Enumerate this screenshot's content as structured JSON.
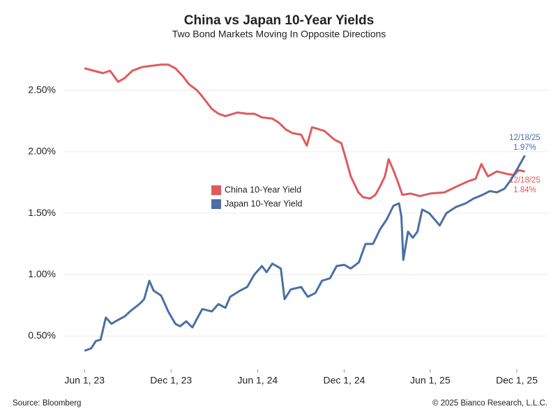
{
  "chart_data": {
    "type": "line",
    "title": "China vs Japan 10-Year Yields",
    "subtitle": "Two Bond Markets Moving In Opposite Directions",
    "source": "Source: Bloomberg",
    "credit": "© 2025 Bianco Research, L.L.C.",
    "xlim": [
      "2023-04-16",
      "2026-02-04"
    ],
    "xticks": [
      {
        "value": "2023-06-01",
        "label": "Jun 1, 23"
      },
      {
        "value": "2023-12-01",
        "label": "Dec 1, 23"
      },
      {
        "value": "2024-06-01",
        "label": "Jun 1, 24"
      },
      {
        "value": "2024-12-01",
        "label": "Dec 1, 24"
      },
      {
        "value": "2025-06-01",
        "label": "Jun 1, 25"
      },
      {
        "value": "2025-12-01",
        "label": "Dec 1, 25"
      }
    ],
    "ylim": [
      0.23,
      2.85
    ],
    "yticks": [
      {
        "value": 0.5,
        "label": "0.50%"
      },
      {
        "value": 1.0,
        "label": "1.00%"
      },
      {
        "value": 1.5,
        "label": "1.50%"
      },
      {
        "value": 2.0,
        "label": "2.00%"
      },
      {
        "value": 2.5,
        "label": "2.50%"
      }
    ],
    "grid": true,
    "legend": "center",
    "series": [
      {
        "name": "China 10-Year Yield",
        "color": "#e05a5d",
        "x": [
          "2023-06-01",
          "2023-06-20",
          "2023-07-10",
          "2023-07-25",
          "2023-08-11",
          "2023-08-25",
          "2023-09-10",
          "2023-10-01",
          "2023-10-20",
          "2023-11-10",
          "2023-11-25",
          "2023-12-10",
          "2023-12-25",
          "2024-01-08",
          "2024-01-25",
          "2024-02-05",
          "2024-02-25",
          "2024-03-10",
          "2024-03-25",
          "2024-04-19",
          "2024-05-10",
          "2024-05-25",
          "2024-06-10",
          "2024-07-02",
          "2024-07-15",
          "2024-07-31",
          "2024-08-15",
          "2024-09-01",
          "2024-09-13",
          "2024-09-24",
          "2024-10-20",
          "2024-11-10",
          "2024-11-25",
          "2024-12-04",
          "2024-12-15",
          "2024-12-31",
          "2025-01-10",
          "2025-01-25",
          "2025-02-05",
          "2025-02-15",
          "2025-02-25",
          "2025-03-05",
          "2025-03-15",
          "2025-03-25",
          "2025-04-03",
          "2025-04-20",
          "2025-05-10",
          "2025-06-01",
          "2025-07-01",
          "2025-07-28",
          "2025-08-20",
          "2025-09-05",
          "2025-09-17",
          "2025-10-01",
          "2025-10-20",
          "2025-11-10",
          "2025-11-25",
          "2025-12-05",
          "2025-12-18"
        ],
        "values": [
          2.68,
          2.66,
          2.64,
          2.66,
          2.57,
          2.6,
          2.66,
          2.69,
          2.7,
          2.71,
          2.71,
          2.68,
          2.62,
          2.55,
          2.5,
          2.45,
          2.35,
          2.31,
          2.29,
          2.32,
          2.31,
          2.31,
          2.28,
          2.27,
          2.24,
          2.18,
          2.15,
          2.14,
          2.05,
          2.2,
          2.17,
          2.1,
          2.07,
          1.95,
          1.8,
          1.67,
          1.63,
          1.62,
          1.65,
          1.72,
          1.8,
          1.94,
          1.85,
          1.75,
          1.65,
          1.66,
          1.64,
          1.66,
          1.67,
          1.72,
          1.76,
          1.78,
          1.9,
          1.8,
          1.84,
          1.82,
          1.81,
          1.85,
          1.84
        ],
        "last_label": {
          "date": "12/18/25",
          "value": "1.84%"
        }
      },
      {
        "name": "Japan 10-Year Yield",
        "color": "#4a6fa5",
        "x": [
          "2023-06-01",
          "2023-06-15",
          "2023-06-25",
          "2023-07-05",
          "2023-07-16",
          "2023-07-28",
          "2023-08-10",
          "2023-08-25",
          "2023-09-05",
          "2023-09-25",
          "2023-10-05",
          "2023-10-16",
          "2023-10-25",
          "2023-11-10",
          "2023-11-25",
          "2023-12-10",
          "2023-12-20",
          "2024-01-02",
          "2024-01-15",
          "2024-02-05",
          "2024-02-25",
          "2024-03-10",
          "2024-03-25",
          "2024-04-04",
          "2024-04-25",
          "2024-05-10",
          "2024-05-25",
          "2024-06-10",
          "2024-06-20",
          "2024-07-02",
          "2024-07-20",
          "2024-07-28",
          "2024-08-10",
          "2024-09-01",
          "2024-09-15",
          "2024-10-01",
          "2024-10-15",
          "2024-11-01",
          "2024-11-15",
          "2024-12-01",
          "2024-12-15",
          "2025-01-01",
          "2025-01-15",
          "2025-01-31",
          "2025-02-15",
          "2025-03-01",
          "2025-03-15",
          "2025-03-27",
          "2025-04-01",
          "2025-04-05",
          "2025-04-15",
          "2025-04-25",
          "2025-05-05",
          "2025-05-15",
          "2025-05-30",
          "2025-06-21",
          "2025-07-05",
          "2025-07-25",
          "2025-08-15",
          "2025-09-01",
          "2025-09-20",
          "2025-10-05",
          "2025-10-20",
          "2025-11-05",
          "2025-11-20",
          "2025-12-05",
          "2025-12-18"
        ],
        "values": [
          0.38,
          0.4,
          0.46,
          0.47,
          0.65,
          0.6,
          0.63,
          0.66,
          0.7,
          0.76,
          0.8,
          0.95,
          0.87,
          0.83,
          0.7,
          0.6,
          0.58,
          0.62,
          0.57,
          0.72,
          0.7,
          0.76,
          0.73,
          0.82,
          0.87,
          0.9,
          1.0,
          1.07,
          1.02,
          1.09,
          1.05,
          0.8,
          0.88,
          0.9,
          0.82,
          0.85,
          0.95,
          0.97,
          1.07,
          1.08,
          1.05,
          1.1,
          1.25,
          1.25,
          1.37,
          1.45,
          1.56,
          1.58,
          1.47,
          1.12,
          1.35,
          1.3,
          1.35,
          1.53,
          1.5,
          1.4,
          1.5,
          1.55,
          1.58,
          1.62,
          1.65,
          1.68,
          1.67,
          1.7,
          1.78,
          1.88,
          1.97
        ],
        "last_label": {
          "date": "12/18/25",
          "value": "1.97%"
        }
      }
    ]
  }
}
